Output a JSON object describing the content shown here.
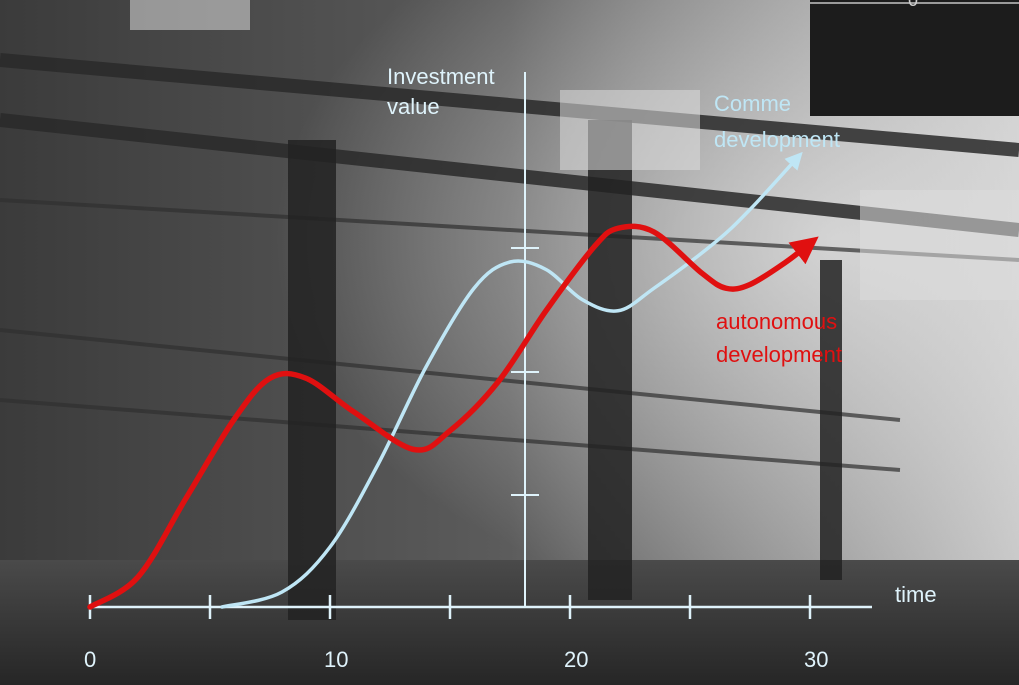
{
  "chart_data": {
    "type": "line",
    "title": "",
    "ylabel": "Investment value",
    "xlabel": "time",
    "x_ticks": [
      0,
      10,
      20,
      30
    ],
    "x_ticks_minor": [
      5,
      15,
      25
    ],
    "xlim": [
      0,
      33
    ],
    "y_ticks_unlabeled": true,
    "grid": false,
    "series": [
      {
        "name": "Commercial development",
        "label_visible": "Comme... development",
        "color": "#bfe6f5",
        "arrow": true,
        "points": [
          [
            5.5,
            0.0
          ],
          [
            8,
            0.04
          ],
          [
            10,
            0.16
          ],
          [
            12,
            0.38
          ],
          [
            14,
            0.64
          ],
          [
            16,
            0.85
          ],
          [
            17.5,
            0.92
          ],
          [
            19,
            0.9
          ],
          [
            20.5,
            0.82
          ],
          [
            22,
            0.79
          ],
          [
            23.5,
            0.85
          ],
          [
            26,
            0.97
          ],
          [
            27.5,
            1.06
          ],
          [
            29.5,
            1.2
          ]
        ]
      },
      {
        "name": "autonomous development",
        "color": "#e01010",
        "arrow": true,
        "points": [
          [
            0,
            0.0
          ],
          [
            2,
            0.08
          ],
          [
            4,
            0.29
          ],
          [
            6,
            0.5
          ],
          [
            7.5,
            0.61
          ],
          [
            9,
            0.61
          ],
          [
            11,
            0.52
          ],
          [
            13.5,
            0.42
          ],
          [
            15,
            0.47
          ],
          [
            17,
            0.6
          ],
          [
            19,
            0.79
          ],
          [
            21,
            0.96
          ],
          [
            22,
            1.01
          ],
          [
            23.5,
            1.0
          ],
          [
            25.5,
            0.89
          ],
          [
            26.5,
            0.85
          ],
          [
            27.5,
            0.86
          ],
          [
            29,
            0.92
          ],
          [
            30,
            0.97
          ]
        ]
      }
    ],
    "ylim": [
      0,
      1.22
    ]
  },
  "labels": {
    "y_axis": "Investment\nvalue",
    "x_axis": "time",
    "series_commercial": "Comme\ndevelopment",
    "series_autonomous": "autonomous\ndevelopment"
  },
  "inset": {
    "visible_text": "0"
  },
  "colors": {
    "axis": "#dff3fb",
    "background_tone": "#6e6e6e"
  }
}
